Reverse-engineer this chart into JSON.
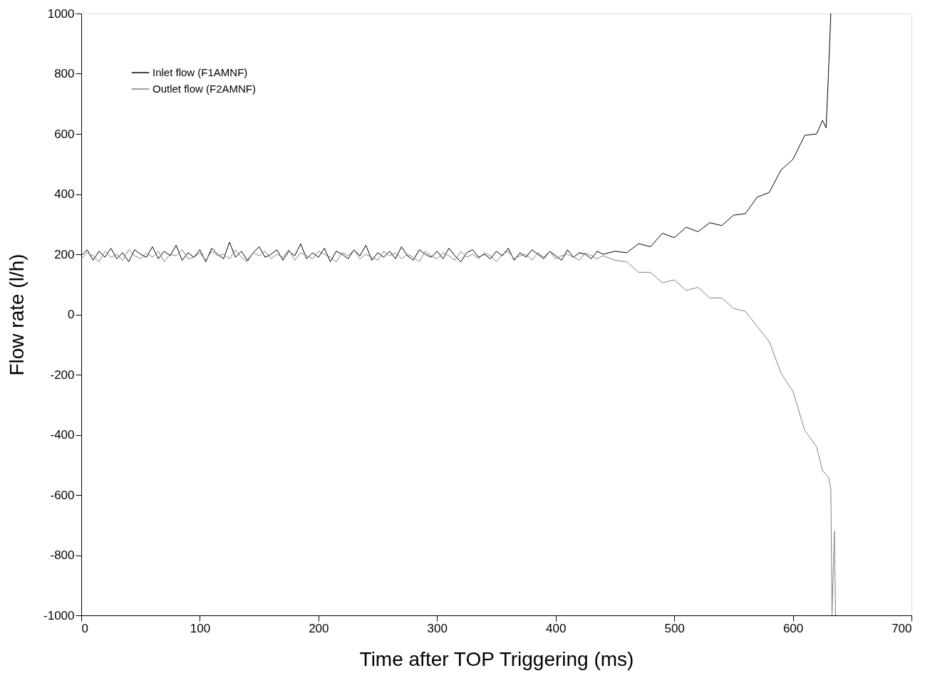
{
  "chart_data": {
    "type": "line",
    "xlabel": "Time after TOP Triggering (ms)",
    "ylabel": "Flow rate (l/h)",
    "xlim": [
      0,
      700
    ],
    "xticks": [
      0,
      100,
      200,
      300,
      400,
      500,
      600,
      700
    ],
    "ylim": [
      -1000,
      1000
    ],
    "yticks": [
      -1000,
      -800,
      -600,
      -400,
      -200,
      0,
      200,
      400,
      600,
      800,
      1000
    ],
    "grid": false,
    "legend": "top left",
    "line_style": "solid",
    "marker": "none",
    "series": [
      {
        "name": "Inlet flow (F1AMNF)",
        "color": "#000000",
        "x": [
          0,
          5,
          10,
          15,
          20,
          25,
          30,
          35,
          40,
          45,
          50,
          55,
          60,
          65,
          70,
          75,
          80,
          85,
          90,
          95,
          100,
          105,
          110,
          115,
          120,
          125,
          130,
          135,
          140,
          145,
          150,
          155,
          160,
          165,
          170,
          175,
          180,
          185,
          190,
          195,
          200,
          205,
          210,
          215,
          220,
          225,
          230,
          235,
          240,
          245,
          250,
          255,
          260,
          265,
          270,
          275,
          280,
          285,
          290,
          295,
          300,
          305,
          310,
          315,
          320,
          325,
          330,
          335,
          340,
          345,
          350,
          355,
          360,
          365,
          370,
          375,
          380,
          385,
          390,
          395,
          400,
          405,
          410,
          415,
          420,
          425,
          430,
          435,
          440,
          450,
          460,
          470,
          480,
          490,
          500,
          510,
          520,
          530,
          540,
          550,
          560,
          570,
          580,
          590,
          600,
          610,
          620,
          625,
          628,
          630,
          632
        ],
        "values": [
          195,
          215,
          180,
          210,
          190,
          220,
          185,
          205,
          175,
          215,
          200,
          190,
          225,
          185,
          210,
          195,
          230,
          180,
          205,
          190,
          215,
          175,
          220,
          200,
          185,
          240,
          190,
          210,
          180,
          205,
          225,
          190,
          200,
          215,
          180,
          210,
          195,
          235,
          185,
          205,
          190,
          220,
          175,
          210,
          200,
          185,
          215,
          195,
          230,
          180,
          205,
          190,
          210,
          185,
          225,
          195,
          180,
          215,
          200,
          190,
          210,
          185,
          220,
          195,
          175,
          205,
          215,
          190,
          200,
          185,
          210,
          195,
          220,
          180,
          205,
          190,
          215,
          200,
          185,
          210,
          195,
          180,
          215,
          190,
          205,
          200,
          185,
          210,
          200,
          210,
          205,
          235,
          225,
          270,
          255,
          290,
          275,
          305,
          295,
          330,
          335,
          390,
          405,
          480,
          515,
          595,
          600,
          645,
          620,
          800,
          1000
        ]
      },
      {
        "name": "Outlet flow (F2AMNF)",
        "color": "#7f7f7f",
        "x": [
          0,
          5,
          10,
          15,
          20,
          25,
          30,
          35,
          40,
          45,
          50,
          55,
          60,
          65,
          70,
          75,
          80,
          85,
          90,
          95,
          100,
          105,
          110,
          115,
          120,
          125,
          130,
          135,
          140,
          145,
          150,
          155,
          160,
          165,
          170,
          175,
          180,
          185,
          190,
          195,
          200,
          205,
          210,
          215,
          220,
          225,
          230,
          235,
          240,
          245,
          250,
          255,
          260,
          265,
          270,
          275,
          280,
          285,
          290,
          295,
          300,
          305,
          310,
          315,
          320,
          325,
          330,
          335,
          340,
          345,
          350,
          355,
          360,
          365,
          370,
          375,
          380,
          385,
          390,
          395,
          400,
          405,
          410,
          415,
          420,
          425,
          430,
          435,
          440,
          450,
          460,
          470,
          480,
          490,
          500,
          510,
          520,
          530,
          540,
          550,
          560,
          570,
          580,
          590,
          600,
          610,
          620,
          625,
          630,
          632,
          633,
          635,
          636
        ],
        "values": [
          185,
          205,
          195,
          175,
          210,
          190,
          200,
          180,
          215,
          195,
          185,
          205,
          190,
          210,
          175,
          200,
          195,
          215,
          185,
          190,
          205,
          180,
          210,
          195,
          200,
          185,
          215,
          190,
          175,
          205,
          195,
          210,
          185,
          200,
          190,
          215,
          180,
          205,
          195,
          185,
          210,
          200,
          190,
          175,
          205,
          195,
          215,
          185,
          200,
          190,
          180,
          210,
          195,
          205,
          185,
          200,
          190,
          175,
          210,
          195,
          185,
          205,
          195,
          180,
          210,
          190,
          200,
          185,
          205,
          195,
          175,
          200,
          210,
          185,
          195,
          200,
          180,
          205,
          190,
          210,
          185,
          195,
          200,
          190,
          180,
          205,
          195,
          185,
          195,
          180,
          175,
          140,
          140,
          105,
          115,
          80,
          90,
          55,
          55,
          20,
          10,
          -40,
          -90,
          -195,
          -255,
          -385,
          -440,
          -520,
          -540,
          -580,
          -1000,
          -720,
          -1000
        ]
      }
    ]
  }
}
